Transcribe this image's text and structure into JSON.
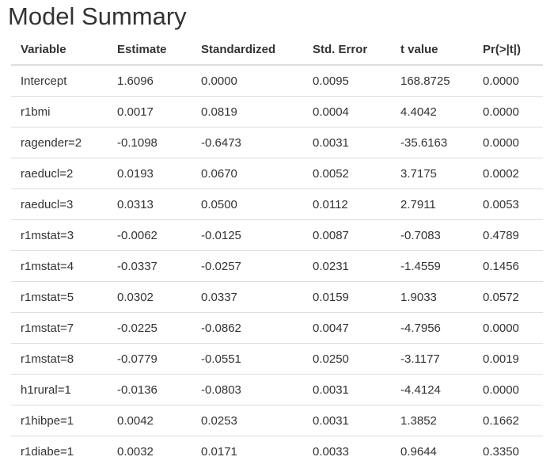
{
  "title": "Model Summary",
  "table": {
    "headers": [
      "Variable",
      "Estimate",
      "Standardized",
      "Std. Error",
      "t value",
      "Pr(>|t|)"
    ],
    "rows": [
      [
        "Intercept",
        "1.6096",
        "0.0000",
        "0.0095",
        "168.8725",
        "0.0000"
      ],
      [
        "r1bmi",
        "0.0017",
        "0.0819",
        "0.0004",
        "4.4042",
        "0.0000"
      ],
      [
        "ragender=2",
        "-0.1098",
        "-0.6473",
        "0.0031",
        "-35.6163",
        "0.0000"
      ],
      [
        "raeducl=2",
        "0.0193",
        "0.0670",
        "0.0052",
        "3.7175",
        "0.0002"
      ],
      [
        "raeducl=3",
        "0.0313",
        "0.0500",
        "0.0112",
        "2.7911",
        "0.0053"
      ],
      [
        "r1mstat=3",
        "-0.0062",
        "-0.0125",
        "0.0087",
        "-0.7083",
        "0.4789"
      ],
      [
        "r1mstat=4",
        "-0.0337",
        "-0.0257",
        "0.0231",
        "-1.4559",
        "0.1456"
      ],
      [
        "r1mstat=5",
        "0.0302",
        "0.0337",
        "0.0159",
        "1.9033",
        "0.0572"
      ],
      [
        "r1mstat=7",
        "-0.0225",
        "-0.0862",
        "0.0047",
        "-4.7956",
        "0.0000"
      ],
      [
        "r1mstat=8",
        "-0.0779",
        "-0.0551",
        "0.0250",
        "-3.1177",
        "0.0019"
      ],
      [
        "h1rural=1",
        "-0.0136",
        "-0.0803",
        "0.0031",
        "-4.4124",
        "0.0000"
      ],
      [
        "r1hibpe=1",
        "0.0042",
        "0.0253",
        "0.0031",
        "1.3852",
        "0.1662"
      ],
      [
        "r1diabe=1",
        "0.0032",
        "0.0171",
        "0.0033",
        "0.9644",
        "0.3350"
      ]
    ]
  }
}
